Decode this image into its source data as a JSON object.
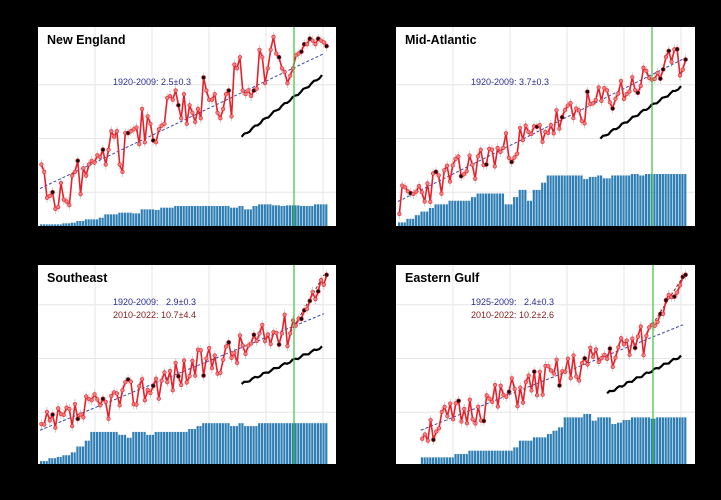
{
  "figure": {
    "background": "#000000",
    "colors": {
      "series_line": "#e8202a",
      "series_marker_fill": "#f08080",
      "highlight_marker": "#111111",
      "trend_dashed": "#3b4aa8",
      "reference_curve": "#000000",
      "coverage_bars": "#2f7fb5",
      "vertical_marker": "#3cc23c",
      "annotation_blue": "#2b2e8f",
      "annotation_red": "#7a1f1f",
      "gridlines": "#e6e6e6"
    }
  },
  "chart_data": [
    {
      "type": "line",
      "title": "New England",
      "annotations": [
        "1920-2009: 2.5±0.3"
      ],
      "x_range": [
        1920,
        2022
      ],
      "grid": true,
      "vertical_line_year": 2010,
      "series": [
        {
          "name": "annual values",
          "x": [
            1920,
            1921,
            1922,
            1923,
            1924,
            1925,
            1926,
            1927,
            1928,
            1929,
            1930,
            1931,
            1932,
            1933,
            1934,
            1935,
            1936,
            1937,
            1938,
            1939,
            1940,
            1941,
            1942,
            1943,
            1944,
            1945,
            1946,
            1947,
            1948,
            1949,
            1950,
            1951,
            1952,
            1953,
            1954,
            1955,
            1956,
            1957,
            1958,
            1959,
            1960,
            1961,
            1962,
            1963,
            1964,
            1965,
            1966,
            1967,
            1968,
            1969,
            1970,
            1971,
            1972,
            1973,
            1974,
            1975,
            1976,
            1977,
            1978,
            1979,
            1980,
            1981,
            1982,
            1983,
            1984,
            1985,
            1986,
            1987,
            1988,
            1989,
            1990,
            1991,
            1992,
            1993,
            1994,
            1995,
            1996,
            1997,
            1998,
            1999,
            2000,
            2001,
            2002,
            2003,
            2004,
            2005,
            2006,
            2007,
            2008,
            2009,
            2010,
            2011,
            2012,
            2013,
            2014,
            2015,
            2016,
            2017,
            2018,
            2019,
            2020,
            2021,
            2022
          ],
          "values": [
            0.3,
            0.26,
            0.12,
            0.13,
            0.15,
            0.06,
            0.07,
            0.2,
            0.11,
            0.1,
            0.08,
            0.24,
            0.26,
            0.32,
            0.14,
            0.28,
            0.24,
            0.3,
            0.32,
            0.31,
            0.35,
            0.34,
            0.38,
            0.3,
            0.38,
            0.48,
            0.45,
            0.48,
            0.3,
            0.26,
            0.47,
            0.47,
            0.48,
            0.49,
            0.5,
            0.41,
            0.6,
            0.42,
            0.56,
            0.52,
            0.43,
            0.42,
            0.49,
            0.51,
            0.52,
            0.66,
            0.67,
            0.65,
            0.7,
            0.62,
            0.55,
            0.68,
            0.52,
            0.62,
            0.58,
            0.53,
            0.6,
            0.55,
            0.77,
            0.7,
            0.65,
            0.65,
            0.68,
            0.58,
            0.55,
            0.6,
            0.68,
            0.7,
            0.56,
            0.84,
            0.82,
            0.88,
            0.7,
            0.68,
            0.7,
            0.67,
            0.7,
            0.71,
            0.92,
            0.88,
            0.74,
            0.82,
            0.92,
            1.0,
            0.9,
            0.88,
            0.82,
            0.8,
            0.74,
            0.78,
            0.82,
            0.89,
            0.9,
            0.91,
            0.95,
            0.95,
            0.98,
            0.97,
            0.95,
            0.98,
            0.97,
            0.96,
            0.94
          ]
        },
        {
          "name": "trend 1920-2009",
          "x": [
            1920,
            2022
          ],
          "values": [
            0.17,
            0.9
          ]
        },
        {
          "name": "reference",
          "x": [
            1990,
            2022
          ],
          "values": [
            0.45,
            0.78
          ]
        },
        {
          "name": "coverage",
          "type": "bar"
        }
      ]
    },
    {
      "type": "line",
      "title": "Mid-Atlantic",
      "annotations": [
        "1920-2009: 3.7±0.3"
      ],
      "x_range": [
        1920,
        2022
      ],
      "grid": true,
      "vertical_line_year": 2010,
      "series": [
        {
          "name": "trend 1920-2009",
          "x": [
            1920,
            2022
          ],
          "values": [
            0.1,
            0.87
          ]
        },
        {
          "name": "reference",
          "x": [
            1990,
            2022
          ],
          "values": [
            0.44,
            0.72
          ]
        },
        {
          "name": "coverage",
          "type": "bar"
        }
      ]
    },
    {
      "type": "line",
      "title": "Southeast",
      "annotations": [
        "1920-2009:   2.9±0.3",
        "2010-2022: 10.7±4.4"
      ],
      "x_range": [
        1920,
        2022
      ],
      "grid": true,
      "vertical_line_year": 2010,
      "series": [
        {
          "name": "trend 1920-2009",
          "x": [
            1920,
            2022
          ],
          "values": [
            0.15,
            0.78
          ]
        },
        {
          "name": "trend 2010-2022",
          "x": [
            2010,
            2022
          ],
          "values": [
            0.68,
            0.99
          ]
        },
        {
          "name": "reference",
          "x": [
            1990,
            2022
          ],
          "values": [
            0.4,
            0.6
          ]
        },
        {
          "name": "coverage",
          "type": "bar"
        }
      ]
    },
    {
      "type": "line",
      "title": "Eastern Gulf",
      "annotations": [
        "1925-2009:   2.4±0.3",
        "2010-2022: 10.2±2.6"
      ],
      "x_range": [
        1925,
        2022
      ],
      "grid": true,
      "vertical_line_year": 2010,
      "series": [
        {
          "name": "trend 1925-2009",
          "x": [
            1925,
            2022
          ],
          "values": [
            0.15,
            0.72
          ]
        },
        {
          "name": "trend 2010-2022",
          "x": [
            2010,
            2022
          ],
          "values": [
            0.72,
            0.98
          ]
        },
        {
          "name": "reference",
          "x": [
            1990,
            2022
          ],
          "values": [
            0.35,
            0.55
          ]
        },
        {
          "name": "coverage",
          "type": "bar"
        }
      ]
    }
  ],
  "panels": [
    {
      "title": "New England",
      "ann1": "1920-2009: 2.5±0.3",
      "ann2": ""
    },
    {
      "title": "Mid-Atlantic",
      "ann1": "1920-2009: 3.7±0.3",
      "ann2": ""
    },
    {
      "title": "Southeast",
      "ann1": "1920-2009:   2.9±0.3",
      "ann2": "2010-2022: 10.7±4.4"
    },
    {
      "title": "Eastern Gulf",
      "ann1": "1925-2009:   2.4±0.3",
      "ann2": "2010-2022: 10.2±2.6"
    }
  ]
}
